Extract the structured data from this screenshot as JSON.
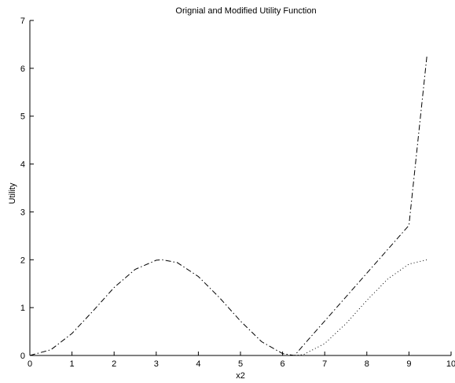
{
  "chart_data": {
    "type": "line",
    "title": "Orignial and Modified Utility Function",
    "xlabel": "x2",
    "ylabel": "Utility",
    "xlim": [
      0,
      10
    ],
    "ylim": [
      0,
      7
    ],
    "xticks": [
      0,
      1,
      2,
      3,
      4,
      5,
      6,
      7,
      8,
      9,
      10
    ],
    "yticks": [
      0,
      1,
      2,
      3,
      4,
      5,
      6,
      7
    ],
    "grid": false,
    "series": [
      {
        "style": "dash-dot",
        "color": "#000000",
        "x": [
          0,
          0.5,
          1,
          1.5,
          2,
          2.5,
          3,
          3.1416,
          3.5,
          4,
          4.5,
          5,
          5.5,
          6,
          6.2832,
          6.5,
          7,
          7.5,
          8,
          8.5,
          9,
          9.4248
        ],
        "y": [
          0,
          0.12,
          0.46,
          0.93,
          1.42,
          1.8,
          1.99,
          2.0,
          1.94,
          1.65,
          1.21,
          0.72,
          0.29,
          0.04,
          0,
          0.22,
          0.72,
          1.22,
          1.72,
          2.22,
          2.72,
          6.25
        ]
      },
      {
        "style": "dotted",
        "color": "#000000",
        "x": [
          6.2832,
          6.5,
          7,
          7.5,
          8,
          8.5,
          9,
          9.4248
        ],
        "y": [
          0,
          0.02,
          0.25,
          0.66,
          1.15,
          1.6,
          1.91,
          2.0
        ]
      }
    ]
  }
}
